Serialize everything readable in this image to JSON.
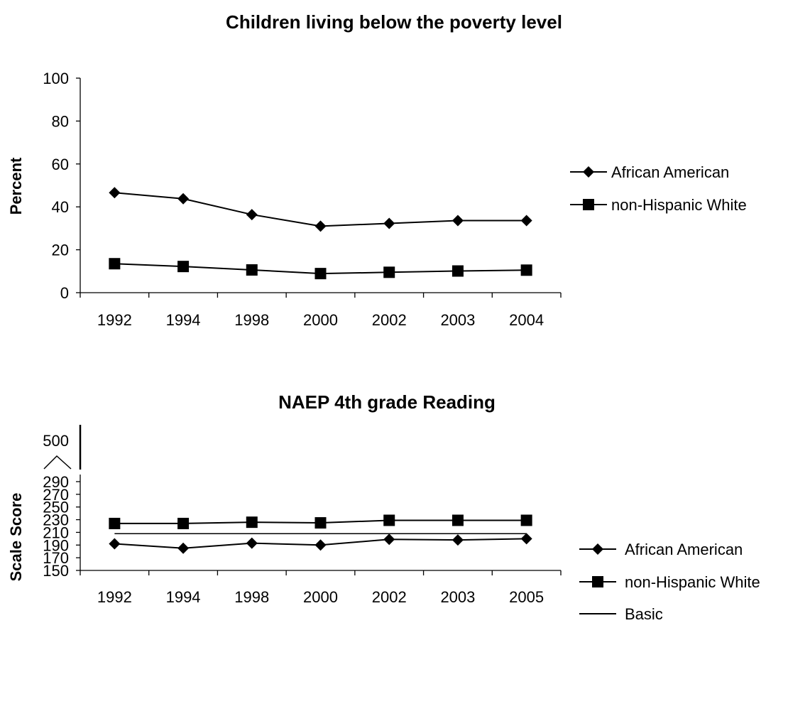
{
  "chart_data": [
    {
      "type": "line",
      "title": "Children living below the poverty level",
      "xlabel": "",
      "ylabel": "Percent",
      "categories": [
        "1992",
        "1994",
        "1998",
        "2000",
        "2002",
        "2003",
        "2004"
      ],
      "yticks": [
        "0",
        "20",
        "40",
        "60",
        "80",
        "100"
      ],
      "ylim": [
        0,
        100
      ],
      "legend_position": "right",
      "grid": false,
      "series": [
        {
          "name": "African American",
          "marker": "diamond",
          "values": [
            46.6,
            43.8,
            36.4,
            31.0,
            32.3,
            33.6,
            33.6
          ]
        },
        {
          "name": "non-Hispanic White",
          "marker": "square",
          "values": [
            13.5,
            12.2,
            10.6,
            8.9,
            9.5,
            10.1,
            10.5
          ]
        }
      ]
    },
    {
      "type": "line",
      "title": "NAEP 4th grade Reading",
      "xlabel": "",
      "ylabel": "Scale Score",
      "categories": [
        "1992",
        "1994",
        "1998",
        "2000",
        "2002",
        "2003",
        "2005"
      ],
      "yticks": [
        "150",
        "170",
        "190",
        "210",
        "230",
        "250",
        "270",
        "290"
      ],
      "ybreak_label": "500",
      "ylim": [
        150,
        290
      ],
      "axis_break": true,
      "legend_position": "right",
      "grid": false,
      "series": [
        {
          "name": "African American",
          "marker": "diamond",
          "values": [
            192,
            185,
            193,
            190,
            199,
            198,
            200
          ]
        },
        {
          "name": "non-Hispanic White",
          "marker": "square",
          "values": [
            224,
            224,
            226,
            225,
            229,
            229,
            229
          ]
        },
        {
          "name": "Basic",
          "marker": "none",
          "values": [
            208,
            208,
            208,
            208,
            208,
            208,
            208
          ]
        }
      ]
    }
  ]
}
